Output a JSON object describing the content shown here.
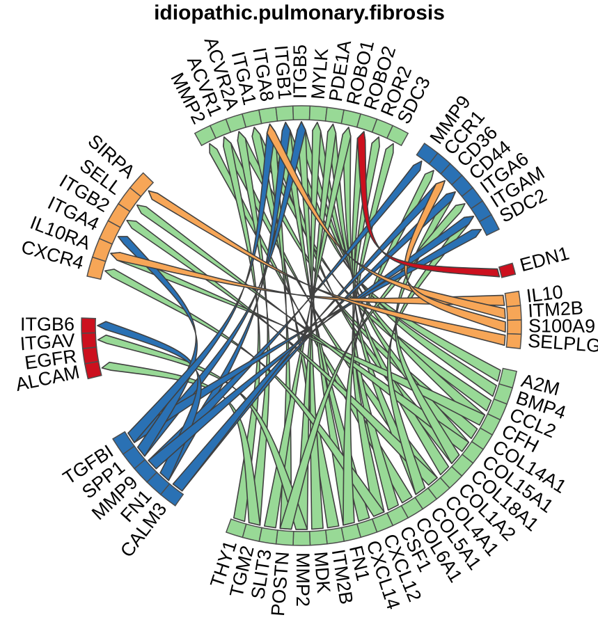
{
  "title": "idiopathic.pulmonary.fibrosis",
  "colors": {
    "green": "#98d996",
    "blue": "#2a71b4",
    "orange": "#f7a657",
    "red": "#cc101e",
    "border": "#4d4d4d"
  },
  "groups": [
    {
      "name": "receptors-top",
      "color": "green",
      "genes": [
        "MMP2",
        "ACVR1",
        "ACVR2A",
        "ITGA1",
        "ITGA8",
        "ITGB1",
        "ITGB5",
        "MYLK",
        "PDE1A",
        "ROBO1",
        "ROBO2",
        "ROR2",
        "SDC3"
      ]
    },
    {
      "name": "receptors-right",
      "color": "blue",
      "genes": [
        "MMP9",
        "CCR1",
        "CD36",
        "CD44",
        "ITGA6",
        "ITGAM",
        "SDC2"
      ]
    },
    {
      "name": "ligand-red-right",
      "color": "red",
      "genes": [
        "EDN1"
      ]
    },
    {
      "name": "ligands-orange-right",
      "color": "orange",
      "genes": [
        "IL10",
        "ITM2B",
        "S100A9",
        "SELPLG"
      ]
    },
    {
      "name": "ligands-green-bottom",
      "color": "green",
      "genes": [
        "A2M",
        "BMP4",
        "CCL2",
        "CFH",
        "COL14A1",
        "COL15A1",
        "COL18A1",
        "COL1A2",
        "COL4A1",
        "COL5A1",
        "COL6A1",
        "CSF1",
        "CXCL12",
        "CXCL14",
        "FN1",
        "ITM2B",
        "MDK",
        "MMP2",
        "POSTN",
        "SLIT3",
        "TGM2",
        "THY1"
      ]
    },
    {
      "name": "ligands-blue-left",
      "color": "blue",
      "genes": [
        "CALM3",
        "FN1",
        "MMP9",
        "SPP1",
        "TGFBI"
      ]
    },
    {
      "name": "receptors-red-left",
      "color": "red",
      "genes": [
        "ALCAM",
        "EGFR",
        "ITGAV",
        "ITGB6"
      ]
    },
    {
      "name": "receptors-orange-left",
      "color": "orange",
      "genes": [
        "CXCR4",
        "IL10RA",
        "ITGA4",
        "ITGB2",
        "SELL",
        "SIRPA"
      ]
    }
  ]
}
